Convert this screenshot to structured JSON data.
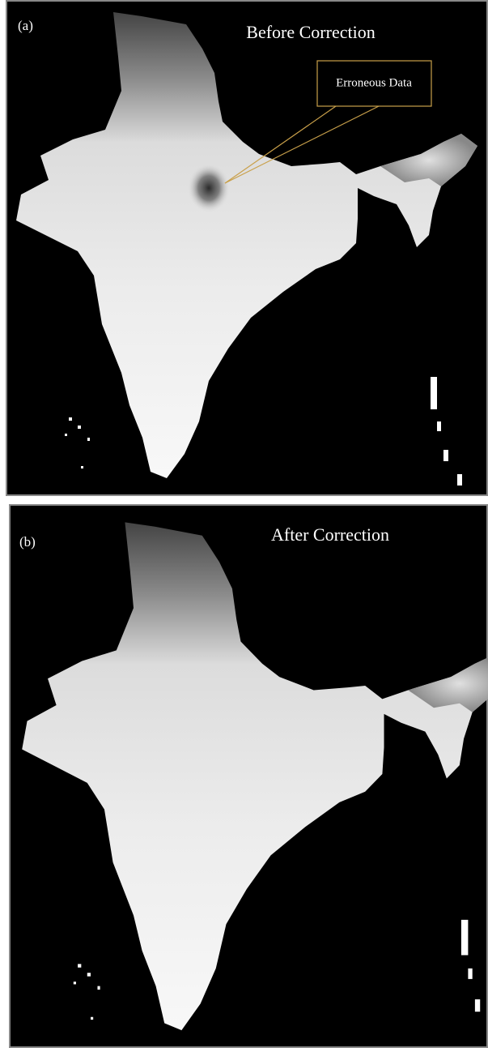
{
  "panels": [
    {
      "label": "(a)",
      "title": "Before Correction",
      "annotation": "Erroneous Data"
    },
    {
      "label": "(b)",
      "title": "After Correction"
    }
  ]
}
